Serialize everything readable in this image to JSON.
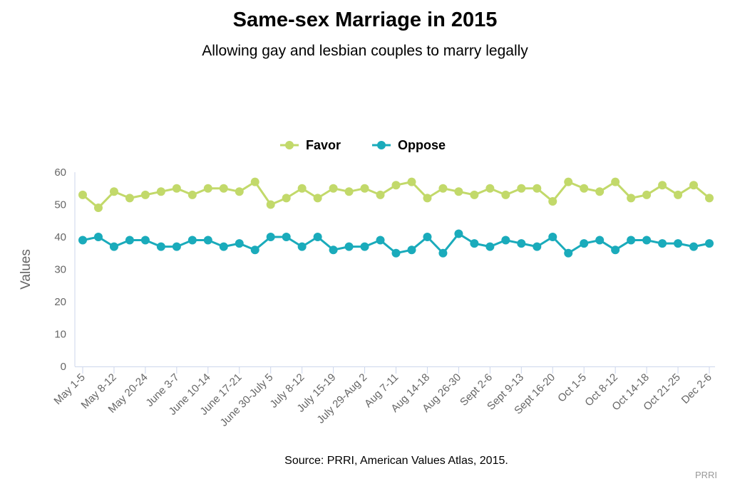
{
  "title": "Same-sex Marriage in 2015",
  "subtitle": "Allowing gay and lesbian couples to marry legally",
  "source": "Source: PRRI, American Values Atlas, 2015.",
  "credit": "PRRI",
  "chart_data": {
    "type": "line",
    "ylabel": "Values",
    "xlabel": "",
    "ylim": [
      0,
      60
    ],
    "yticks": [
      0,
      10,
      20,
      30,
      40,
      50,
      60
    ],
    "grid": false,
    "legend_position": "top-center",
    "categories": [
      "May 1-5",
      "",
      "May 8-12",
      "",
      "May 20-24",
      "",
      "June 3-7",
      "",
      "June 10-14",
      "",
      "June 17-21",
      "",
      "June 30-July 5",
      "",
      "July 8-12",
      "",
      "July 15-19",
      "",
      "July 29-Aug 2",
      "",
      "Aug 7-11",
      "",
      "Aug 14-18",
      "",
      "Aug 26-30",
      "",
      "Sept 2-6",
      "",
      "Sept 9-13",
      "",
      "Sept 16-20",
      "",
      "Oct 1-5",
      "",
      "Oct 8-12",
      "",
      "Oct 14-18",
      "",
      "Oct 21-25",
      "",
      "Dec 2-6"
    ],
    "series": [
      {
        "name": "Favor",
        "color": "#c2d96a",
        "values": [
          53,
          49,
          54,
          52,
          53,
          54,
          55,
          53,
          55,
          55,
          54,
          57,
          50,
          52,
          55,
          52,
          55,
          54,
          55,
          53,
          56,
          57,
          52,
          55,
          54,
          53,
          55,
          53,
          55,
          55,
          51,
          57,
          55,
          54,
          57,
          52,
          53,
          56,
          53,
          56,
          52
        ]
      },
      {
        "name": "Oppose",
        "color": "#1aabbb",
        "values": [
          39,
          40,
          37,
          39,
          39,
          37,
          37,
          39,
          39,
          37,
          38,
          36,
          40,
          40,
          37,
          40,
          36,
          37,
          37,
          39,
          35,
          36,
          40,
          35,
          41,
          38,
          37,
          39,
          38,
          37,
          40,
          35,
          38,
          39,
          36,
          39,
          39,
          38,
          38,
          37,
          38
        ]
      }
    ]
  }
}
